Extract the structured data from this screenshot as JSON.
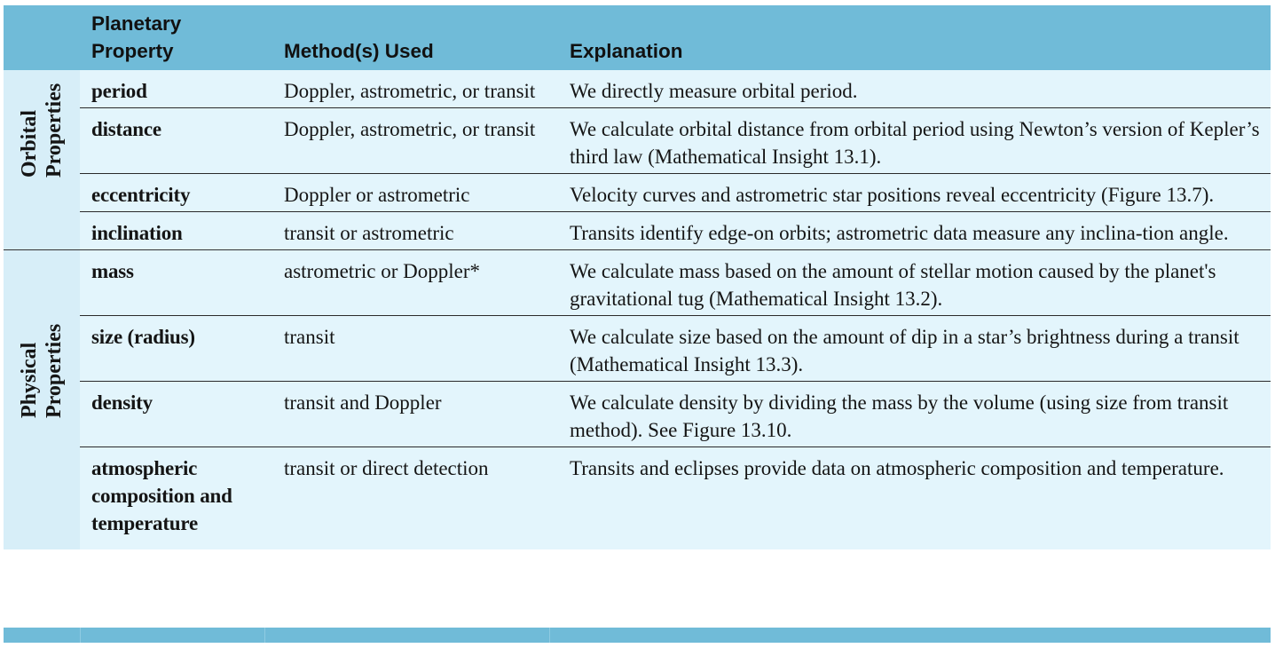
{
  "header": {
    "col_group": "",
    "col_property": "Planetary Property",
    "col_method": "Method(s) Used",
    "col_explanation": "Explanation"
  },
  "groups": {
    "orbital": [
      "Orbital",
      "Properties"
    ],
    "physical": [
      "Physical",
      "Properties"
    ]
  },
  "rows": [
    {
      "property": "period",
      "method": "Doppler, astrometric, or transit",
      "explanation": "We directly measure orbital period."
    },
    {
      "property": "distance",
      "method": "Doppler, astrometric, or transit",
      "explanation": "We calculate orbital distance from orbital period using Newton’s version of Kepler’s third law (Mathematical Insight 13.1)."
    },
    {
      "property": "eccentricity",
      "method": "Doppler or astrometric",
      "explanation": "Velocity curves and astrometric star positions reveal eccentricity (Figure 13.7)."
    },
    {
      "property": "inclination",
      "method": "transit or astrometric",
      "explanation": "Transits identify edge-on orbits; astrometric data measure any inclina-tion angle."
    },
    {
      "property": "mass",
      "method": "astrometric or Doppler*",
      "explanation": "We calculate mass based on the amount of stellar motion caused by the planet's gravitational tug (Mathematical Insight 13.2)."
    },
    {
      "property": "size (radius)",
      "method": "transit",
      "explanation": "We calculate size based on the amount of dip in a star’s brightness during a transit (Mathematical Insight 13.3)."
    },
    {
      "property": "density",
      "method": "transit and Doppler",
      "explanation": "We calculate density by dividing the mass by the volume (using size from transit method). See Figure 13.10."
    },
    {
      "property": "atmospheric composition and temperature",
      "method": "transit or direct detection",
      "explanation": "Transits and eclipses provide data on atmospheric composition and temperature."
    }
  ],
  "colors": {
    "header_bg": "#70bbd8",
    "body_bg": "#e3f5fc"
  }
}
